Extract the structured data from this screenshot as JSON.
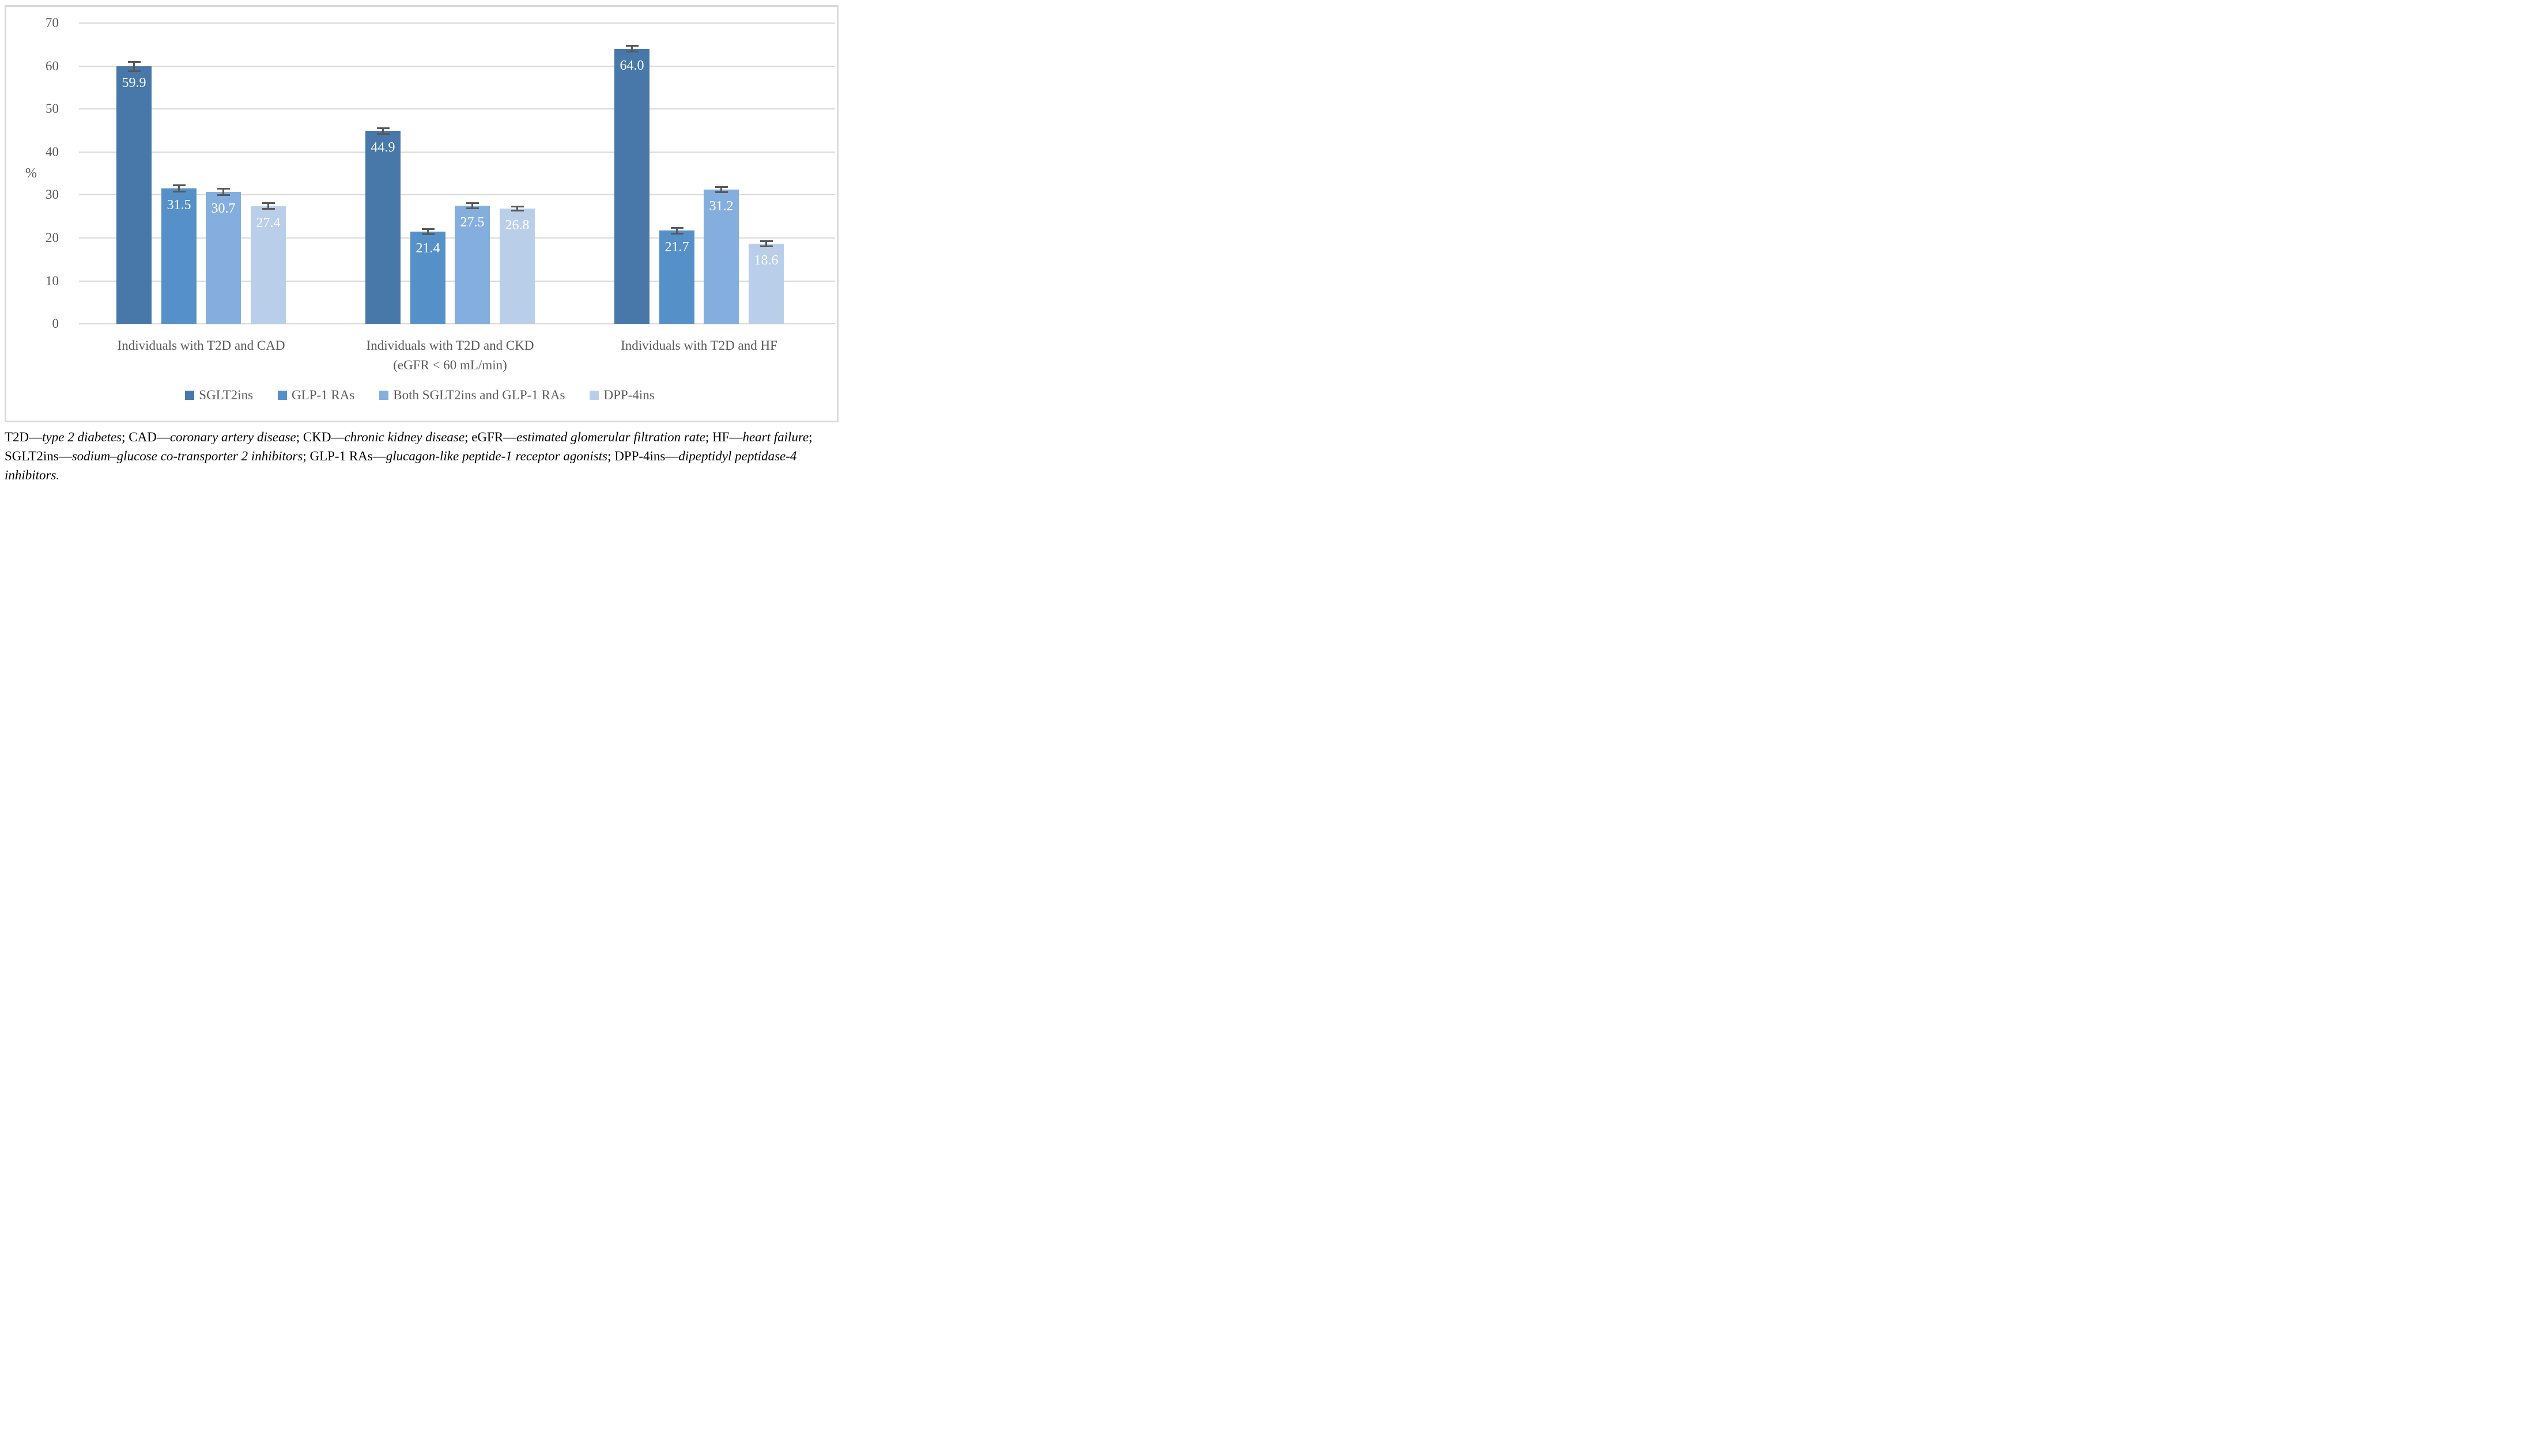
{
  "chart_data": {
    "type": "bar",
    "title": "",
    "xlabel": "",
    "ylabel": "%",
    "ylim": [
      0,
      70
    ],
    "ytick_labels": [
      "70",
      "60",
      "50",
      "40",
      "30",
      "20",
      "10",
      "0"
    ],
    "grid": true,
    "error_bars": true,
    "legend_position": "bottom",
    "categories": [
      {
        "line1": "Individuals with T2D and CAD",
        "line2": ""
      },
      {
        "line1": "Individuals with T2D and CKD",
        "line2": "(eGFR < 60 mL/min)"
      },
      {
        "line1": "Individuals with T2D and HF",
        "line2": ""
      }
    ],
    "series": [
      {
        "name": "SGLT2ins",
        "color": "#4778A9",
        "values": [
          59.9,
          44.9,
          64.0
        ],
        "value_labels": [
          "59.9",
          "44.9",
          "64.0"
        ],
        "errors": [
          1.3,
          0.9,
          0.9
        ]
      },
      {
        "name": "GLP-1 RAs",
        "color": "#5590C8",
        "values": [
          31.5,
          21.4,
          21.7
        ],
        "value_labels": [
          "31.5",
          "21.4",
          "21.7"
        ],
        "errors": [
          0.9,
          0.8,
          0.9
        ]
      },
      {
        "name": "Both SGLT2ins and GLP-1 RAs",
        "color": "#84AEDD",
        "values": [
          30.7,
          27.5,
          31.2
        ],
        "value_labels": [
          "30.7",
          "27.5",
          "31.2"
        ],
        "errors": [
          0.9,
          0.8,
          0.8
        ]
      },
      {
        "name": "DPP-4ins",
        "color": "#B9CFE9",
        "values": [
          27.4,
          26.8,
          18.6
        ],
        "value_labels": [
          "27.4",
          "26.8",
          "18.6"
        ],
        "errors": [
          0.9,
          0.7,
          0.8
        ]
      }
    ]
  },
  "footnote": {
    "segments": [
      {
        "text": "T2D—",
        "italic": false
      },
      {
        "text": "type 2 diabetes",
        "italic": true
      },
      {
        "text": "; ",
        "italic": false
      },
      {
        "text": "CAD—",
        "italic": false
      },
      {
        "text": "coronary artery disease",
        "italic": true
      },
      {
        "text": "; ",
        "italic": false
      },
      {
        "text": "CKD—",
        "italic": false
      },
      {
        "text": "chronic kidney disease",
        "italic": true
      },
      {
        "text": "; ",
        "italic": false
      },
      {
        "text": "eGFR—",
        "italic": false
      },
      {
        "text": "estimated glomerular filtration rate",
        "italic": true
      },
      {
        "text": "; ",
        "italic": false
      },
      {
        "text": "HF—",
        "italic": false
      },
      {
        "text": "heart failure",
        "italic": true
      },
      {
        "text": "; ",
        "italic": false
      },
      {
        "text": "SGLT2ins—",
        "italic": false
      },
      {
        "text": "sodium–glucose co-transporter 2 inhibitors",
        "italic": true
      },
      {
        "text": "; ",
        "italic": false
      },
      {
        "text": "GLP-1 RAs—",
        "italic": false
      },
      {
        "text": "glucagon-like peptide-1 receptor agonists",
        "italic": true
      },
      {
        "text": "; ",
        "italic": false
      },
      {
        "text": "DPP-4ins—",
        "italic": false
      },
      {
        "text": "dipeptidyl peptidase-4 inhibitors.",
        "italic": true
      }
    ]
  }
}
